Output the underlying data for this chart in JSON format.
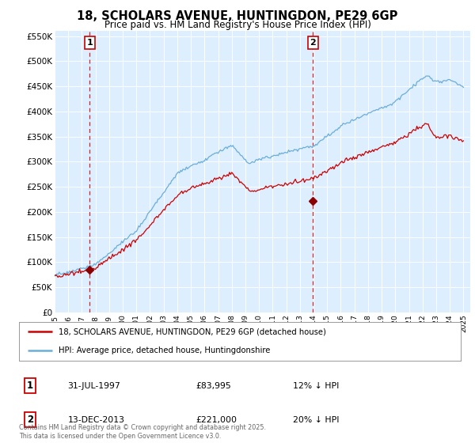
{
  "title": "18, SCHOLARS AVENUE, HUNTINGDON, PE29 6GP",
  "subtitle": "Price paid vs. HM Land Registry's House Price Index (HPI)",
  "sale1_date": "31-JUL-1997",
  "sale1_price": 83995,
  "sale1_label": "12% ↓ HPI",
  "sale2_date": "13-DEC-2013",
  "sale2_price": 221000,
  "sale2_label": "20% ↓ HPI",
  "legend1": "18, SCHOLARS AVENUE, HUNTINGDON, PE29 6GP (detached house)",
  "legend2": "HPI: Average price, detached house, Huntingdonshire",
  "footer": "Contains HM Land Registry data © Crown copyright and database right 2025.\nThis data is licensed under the Open Government Licence v3.0.",
  "hpi_color": "#6baed6",
  "price_color": "#cc0000",
  "marker_color": "#8b0000",
  "dashed_line_color": "#cc0000",
  "background_color": "#ddeeff",
  "ylim": [
    0,
    560000
  ],
  "yticks": [
    0,
    50000,
    100000,
    150000,
    200000,
    250000,
    300000,
    350000,
    400000,
    450000,
    500000,
    550000
  ],
  "sale1_x": 1997.58,
  "sale2_x": 2013.95
}
